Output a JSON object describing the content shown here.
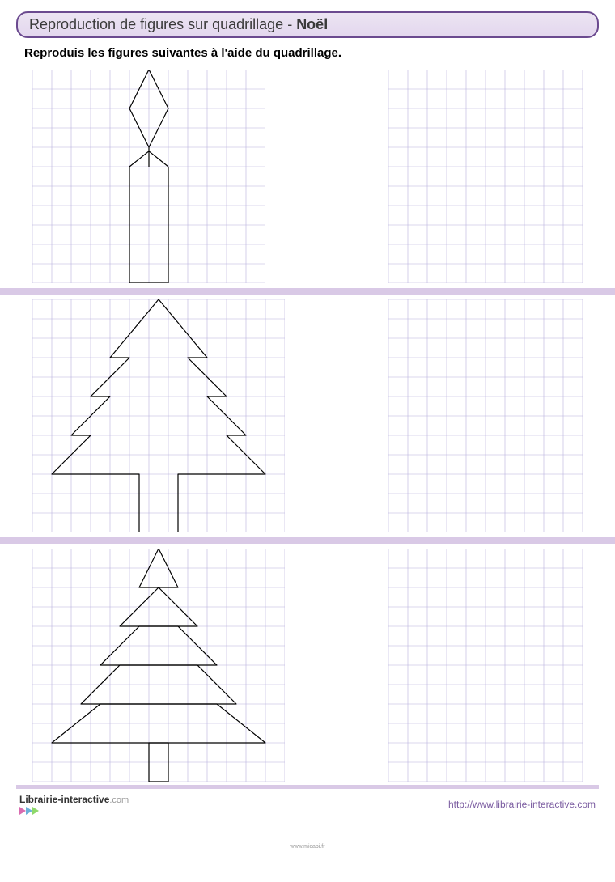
{
  "header": {
    "prefix": "Reproduction de figures sur quadrillage - ",
    "bold": "Noël"
  },
  "instruction": "Reproduis les figures suivantes à l'aide du quadrillage.",
  "grid": {
    "cell_size": 24,
    "line_color": "#b8b0dd",
    "line_width": 0.6,
    "figure_stroke": "#000000",
    "figure_width": 1.2
  },
  "sections": [
    {
      "left_grid": {
        "cols": 12,
        "rows": 11
      },
      "right_grid": {
        "cols": 10,
        "rows": 11
      },
      "figure": {
        "type": "candle",
        "paths": [
          "M 6 0 L 7 2 L 6 4 L 5 2 Z",
          "M 6 4 L 6 5",
          "M 5 5 L 6 4.2 L 7 5",
          "M 5 5 L 5 11 L 7 11 L 7 5"
        ]
      }
    },
    {
      "left_grid": {
        "cols": 13,
        "rows": 12
      },
      "right_grid": {
        "cols": 10,
        "rows": 12
      },
      "figure": {
        "type": "tree-solid",
        "paths": [
          "M 6.5 0 L 9 3 L 8 3 L 10 5 L 9 5 L 11 7 L 10 7 L 12 9 L 7.5 9 L 7.5 12 L 5.5 12 L 5.5 9 L 1 9 L 3 7 L 2 7 L 4 5 L 3 5 L 5 3 L 4 3 Z"
        ]
      }
    },
    {
      "left_grid": {
        "cols": 13,
        "rows": 12
      },
      "right_grid": {
        "cols": 10,
        "rows": 12
      },
      "figure": {
        "type": "tree-layered",
        "paths": [
          "M 6.5 0 L 7.5 2 L 5.5 2 Z",
          "M 6.5 2 L 8.5 4 L 4.5 4 Z",
          "M 5.5 4 L 7.5 4 L 9.5 6 L 3.5 6 Z",
          "M 4.5 6 L 8.5 6 L 10.5 8 L 2.5 8 Z",
          "M 3.5 8 L 9.5 8 L 12 10 L 1 10 Z",
          "M 6 10 L 7 10 L 7 12 L 6 12 Z"
        ]
      }
    }
  ],
  "footer": {
    "logo_main": "Librairie-interactive",
    "logo_suffix": ".com",
    "url": "http://www.librairie-interactive.com",
    "tri_colors": [
      "#d96bb0",
      "#6bb0d9",
      "#8fd96b"
    ]
  },
  "credit": "www.micapi.fr"
}
